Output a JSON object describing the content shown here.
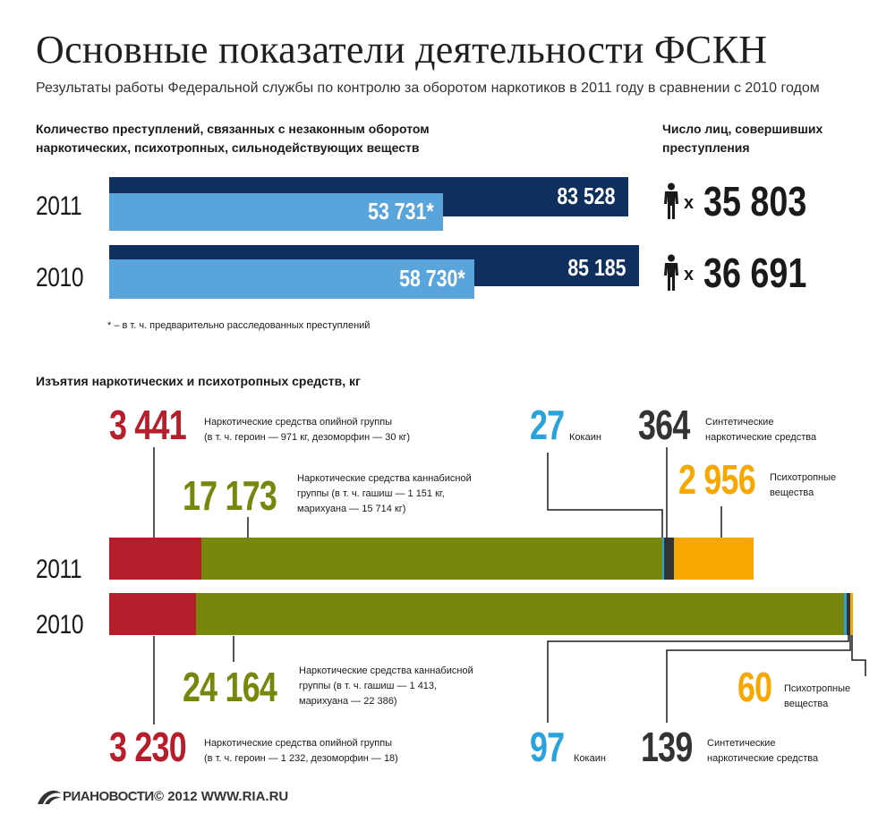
{
  "header": {
    "title": "Основные показатели деятельности ФСКН",
    "subtitle": "Результаты работы Федеральной службы по контролю за оборотом наркотиков в 2011 году в сравнении с 2010 годом"
  },
  "crimes": {
    "heading_line1": "Количество преступлений, связанных с незаконным оборотом",
    "heading_line2": "наркотических, психотропных, сильнодействующих веществ",
    "persons_heading_line1": "Число лиц, совершивших",
    "persons_heading_line2": "преступления",
    "footnote": "* – в т. ч. предварительно расследованных преступлений",
    "cross": "x",
    "rows": [
      {
        "year": "2011",
        "total_label": "83 528",
        "investigated_label": "53 731*",
        "persons_label": "35 803"
      },
      {
        "year": "2010",
        "total_label": "85 185",
        "investigated_label": "58 730*",
        "persons_label": "36 691"
      }
    ]
  },
  "seizures": {
    "heading": "Изъятия наркотических и психотропных средств, кг",
    "y2011": {
      "year": "2011",
      "opium": {
        "value": "3 441",
        "line1": "Наркотические средства опийной группы",
        "line2": "(в т. ч. героин — 971 кг, дезоморфин — 30 кг)"
      },
      "cannabis": {
        "value": "17 173",
        "line1": "Наркотические средства каннабисной",
        "line2": "группы (в т. ч. гашиш — 1 151 кг,",
        "line3": "марихуана — 15 714 кг)"
      },
      "cocaine": {
        "value": "27",
        "label": "Кокаин"
      },
      "synthetic": {
        "value": "364",
        "line1": "Синтетические",
        "line2": "наркотические средства"
      },
      "psychotropic": {
        "value": "2 956",
        "line1": "Психотропные",
        "line2": "вещества"
      }
    },
    "y2010": {
      "year": "2010",
      "opium": {
        "value": "3 230",
        "line1": "Наркотические средства опийной группы",
        "line2": "(в т. ч. героин — 1 232, дезоморфин — 18)"
      },
      "cannabis": {
        "value": "24 164",
        "line1": "Наркотические средства каннабисной",
        "line2": "группы (в т. ч. гашиш  — 1 413,",
        "line3": "марихуана — 22 386)"
      },
      "cocaine": {
        "value": "97",
        "label": "Кокаин"
      },
      "synthetic": {
        "value": "139",
        "line1": "Синтетические",
        "line2": "наркотические средства"
      },
      "psychotropic": {
        "value": "60",
        "line1": "Психотропные",
        "line2": "вещества"
      }
    }
  },
  "footer": {
    "logo_text": "РИАНОВОСТИ",
    "copyright": "© 2012 WWW.RIA.RU"
  },
  "colors": {
    "navy": "#0f2f5f",
    "lightblue": "#5aa4dc",
    "opium": "#b51e2a",
    "cannabis": "#77870c",
    "cocaine": "#2aa3dd",
    "synthetic": "#333333",
    "psychotropic": "#f7a800"
  },
  "chart_data": [
    {
      "type": "bar",
      "title": "Количество преступлений, связанных с незаконным оборотом наркотических, психотропных, сильнодействующих веществ",
      "categories": [
        "2011",
        "2010"
      ],
      "series": [
        {
          "values": [
            83528,
            85185
          ]
        },
        {
          "values": [
            53731,
            58730
          ]
        }
      ],
      "persons": {
        "title": "Число лиц, совершивших преступления",
        "values": [
          35803,
          36691
        ]
      },
      "footnote": "* – в т. ч. предварительно расследованных преступлений"
    },
    {
      "type": "bar",
      "stacked": true,
      "title": "Изъятия наркотических и психотропных средств, кг",
      "categories": [
        "2011",
        "2010"
      ],
      "series": [
        {
          "name": "Наркотические средства опийной группы",
          "values": [
            3441,
            3230
          ]
        },
        {
          "name": "Наркотические средства каннабисной группы",
          "values": [
            17173,
            24164
          ]
        },
        {
          "name": "Кокаин",
          "values": [
            27,
            97
          ]
        },
        {
          "name": "Синтетические наркотические средства",
          "values": [
            364,
            139
          ]
        },
        {
          "name": "Психотропные вещества",
          "values": [
            2956,
            60
          ]
        }
      ]
    }
  ]
}
